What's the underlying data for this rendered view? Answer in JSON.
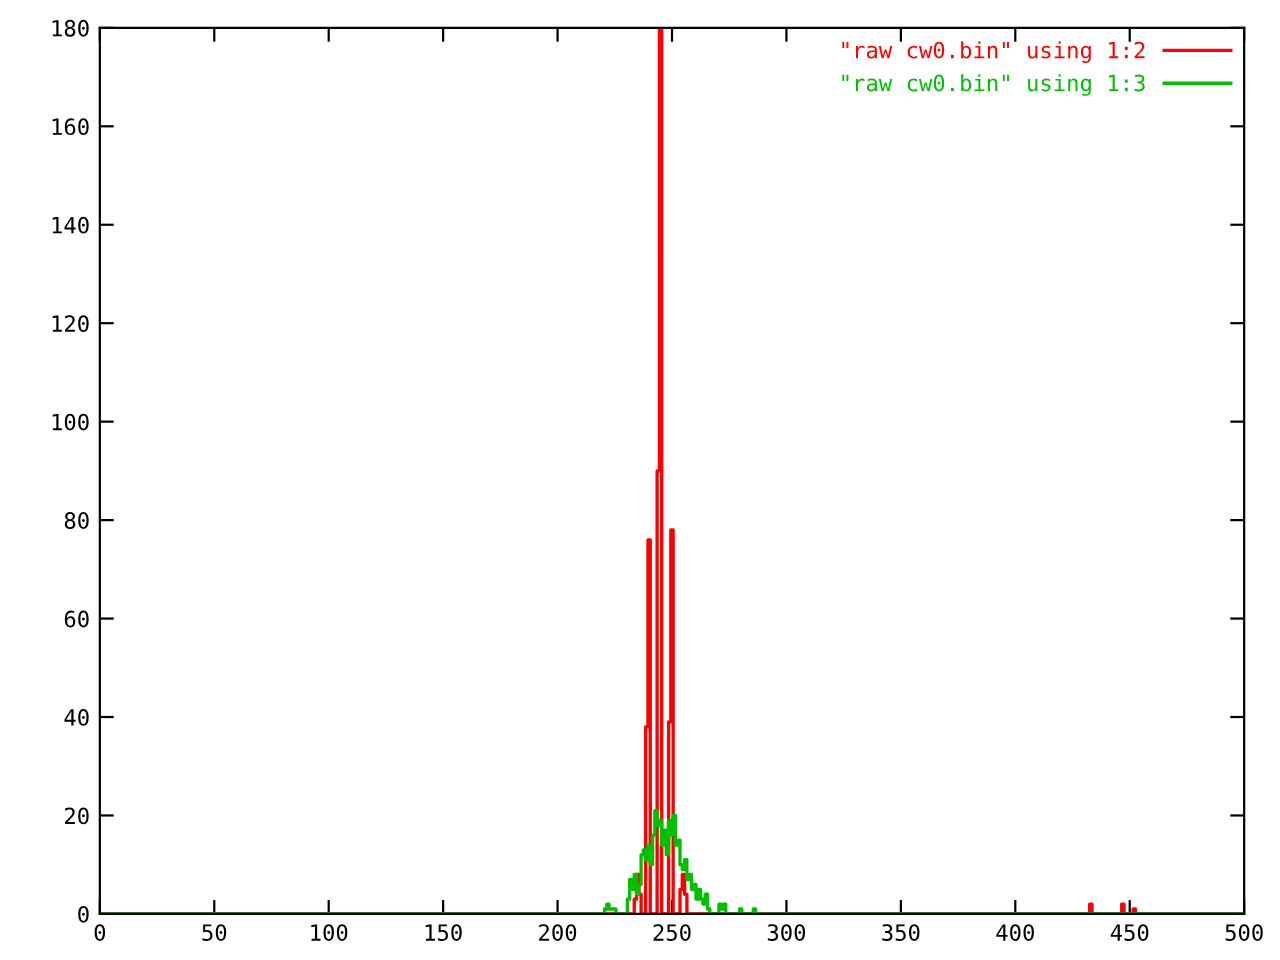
{
  "chart_data": {
    "type": "step",
    "xlim": [
      0,
      500
    ],
    "ylim": [
      0,
      180
    ],
    "xticks": [
      0,
      50,
      100,
      150,
      200,
      250,
      300,
      350,
      400,
      450,
      500
    ],
    "yticks": [
      0,
      20,
      40,
      60,
      80,
      100,
      120,
      140,
      160,
      180
    ],
    "grid": false,
    "legend": "top right",
    "series": [
      {
        "name": "\"raw cw0.bin\" using 1:2",
        "color": "#ff0000",
        "x": [
          0,
          233,
          234,
          235,
          236,
          237,
          238,
          239,
          240,
          241,
          242,
          243,
          244,
          245,
          246,
          247,
          248,
          249,
          250,
          251,
          252,
          253,
          254,
          255,
          256,
          257,
          432,
          433,
          434,
          446,
          447,
          448,
          451,
          452,
          453,
          500
        ],
        "values": [
          0,
          0,
          3,
          8,
          4,
          0,
          0,
          38,
          76,
          0,
          0,
          0,
          90,
          180,
          0,
          0,
          0,
          39,
          78,
          0,
          0,
          0,
          5,
          8,
          4,
          0,
          0,
          2,
          0,
          0,
          2,
          0,
          0,
          1,
          0,
          0
        ]
      },
      {
        "name": "\"raw cw0.bin\" using 1:3",
        "color": "#00c000",
        "x": [
          0,
          220,
          221,
          222,
          223,
          224,
          225,
          226,
          230,
          231,
          232,
          233,
          234,
          235,
          236,
          237,
          238,
          239,
          240,
          241,
          242,
          243,
          244,
          245,
          246,
          247,
          248,
          249,
          250,
          251,
          252,
          253,
          254,
          255,
          256,
          257,
          258,
          259,
          260,
          261,
          262,
          263,
          264,
          265,
          266,
          267,
          270,
          271,
          272,
          273,
          274,
          279,
          280,
          281,
          285,
          286,
          287,
          500
        ],
        "values": [
          0,
          0,
          1,
          2,
          1,
          1,
          1,
          0,
          0,
          3,
          7,
          5,
          8,
          4,
          6,
          12,
          13,
          11,
          14,
          10,
          16,
          21,
          18,
          19,
          14,
          17,
          12,
          19,
          16,
          20,
          14,
          15,
          10,
          9,
          11,
          7,
          8,
          5,
          6,
          3,
          5,
          3,
          2,
          4,
          1,
          0,
          0,
          2,
          1,
          2,
          0,
          0,
          1,
          0,
          0,
          1,
          0,
          0
        ]
      }
    ]
  }
}
